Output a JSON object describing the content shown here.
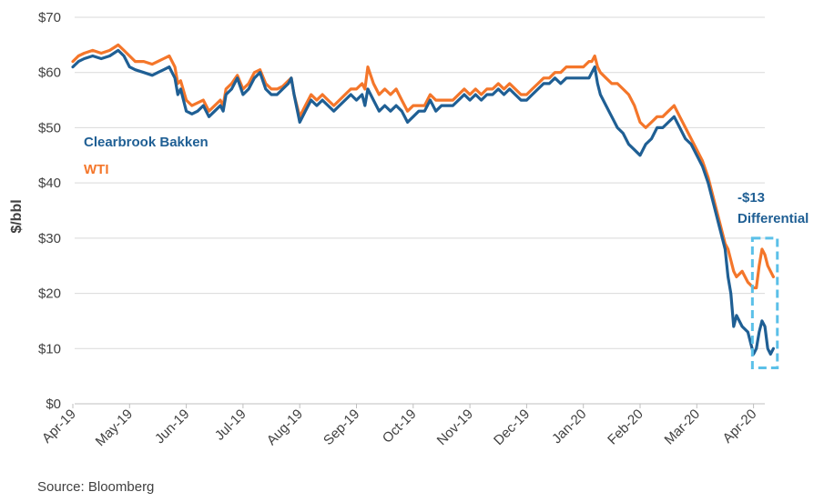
{
  "chart_data": {
    "type": "line",
    "ylabel": "$/bbl",
    "ylim": [
      0,
      70
    ],
    "y_ticks": [
      "$0",
      "$10",
      "$20",
      "$30",
      "$40",
      "$50",
      "$60",
      "$70"
    ],
    "y_tick_values": [
      0,
      10,
      20,
      30,
      40,
      50,
      60,
      70
    ],
    "x_ticks": [
      "Apr-19",
      "May-19",
      "Jun-19",
      "Jul-19",
      "Aug-19",
      "Sep-19",
      "Oct-19",
      "Nov-19",
      "Dec-19",
      "Jan-20",
      "Feb-20",
      "Mar-20",
      "Apr-20"
    ],
    "grid": "horizontal",
    "series": [
      {
        "name": "Clearbrook Bakken",
        "color": "#1f5f94",
        "points": [
          [
            0,
            61
          ],
          [
            0.1,
            62
          ],
          [
            0.2,
            62.5
          ],
          [
            0.35,
            63
          ],
          [
            0.5,
            62.5
          ],
          [
            0.65,
            63
          ],
          [
            0.8,
            64
          ],
          [
            0.9,
            63
          ],
          [
            1.0,
            61
          ],
          [
            1.1,
            60.5
          ],
          [
            1.25,
            60
          ],
          [
            1.4,
            59.5
          ],
          [
            1.5,
            60
          ],
          [
            1.6,
            60.5
          ],
          [
            1.7,
            61
          ],
          [
            1.8,
            59
          ],
          [
            1.85,
            56
          ],
          [
            1.9,
            57
          ],
          [
            2.0,
            53
          ],
          [
            2.1,
            52.5
          ],
          [
            2.2,
            53
          ],
          [
            2.3,
            54
          ],
          [
            2.4,
            52
          ],
          [
            2.5,
            53
          ],
          [
            2.6,
            54
          ],
          [
            2.65,
            53
          ],
          [
            2.7,
            56
          ],
          [
            2.8,
            57
          ],
          [
            2.9,
            59
          ],
          [
            3.0,
            56
          ],
          [
            3.1,
            57
          ],
          [
            3.2,
            59
          ],
          [
            3.3,
            60
          ],
          [
            3.4,
            57
          ],
          [
            3.5,
            56
          ],
          [
            3.6,
            56
          ],
          [
            3.7,
            57
          ],
          [
            3.8,
            58
          ],
          [
            3.85,
            59
          ],
          [
            3.9,
            56
          ],
          [
            4.0,
            51
          ],
          [
            4.1,
            53
          ],
          [
            4.2,
            55
          ],
          [
            4.3,
            54
          ],
          [
            4.4,
            55
          ],
          [
            4.5,
            54
          ],
          [
            4.6,
            53
          ],
          [
            4.7,
            54
          ],
          [
            4.8,
            55
          ],
          [
            4.9,
            56
          ],
          [
            5.0,
            55
          ],
          [
            5.1,
            56
          ],
          [
            5.15,
            54
          ],
          [
            5.2,
            57
          ],
          [
            5.3,
            55
          ],
          [
            5.4,
            53
          ],
          [
            5.5,
            54
          ],
          [
            5.6,
            53
          ],
          [
            5.7,
            54
          ],
          [
            5.8,
            53
          ],
          [
            5.9,
            51
          ],
          [
            6.0,
            52
          ],
          [
            6.1,
            53
          ],
          [
            6.2,
            53
          ],
          [
            6.3,
            55
          ],
          [
            6.4,
            53
          ],
          [
            6.5,
            54
          ],
          [
            6.6,
            54
          ],
          [
            6.7,
            54
          ],
          [
            6.8,
            55
          ],
          [
            6.9,
            56
          ],
          [
            7.0,
            55
          ],
          [
            7.1,
            56
          ],
          [
            7.2,
            55
          ],
          [
            7.3,
            56
          ],
          [
            7.4,
            56
          ],
          [
            7.5,
            57
          ],
          [
            7.6,
            56
          ],
          [
            7.7,
            57
          ],
          [
            7.8,
            56
          ],
          [
            7.9,
            55
          ],
          [
            8.0,
            55
          ],
          [
            8.1,
            56
          ],
          [
            8.2,
            57
          ],
          [
            8.3,
            58
          ],
          [
            8.4,
            58
          ],
          [
            8.5,
            59
          ],
          [
            8.6,
            58
          ],
          [
            8.7,
            59
          ],
          [
            8.8,
            59
          ],
          [
            8.9,
            59
          ],
          [
            9.0,
            59
          ],
          [
            9.1,
            59
          ],
          [
            9.15,
            60
          ],
          [
            9.2,
            61
          ],
          [
            9.25,
            58
          ],
          [
            9.3,
            56
          ],
          [
            9.4,
            54
          ],
          [
            9.5,
            52
          ],
          [
            9.6,
            50
          ],
          [
            9.7,
            49
          ],
          [
            9.8,
            47
          ],
          [
            9.9,
            46
          ],
          [
            10.0,
            45
          ],
          [
            10.1,
            47
          ],
          [
            10.2,
            48
          ],
          [
            10.3,
            50
          ],
          [
            10.4,
            50
          ],
          [
            10.5,
            51
          ],
          [
            10.6,
            52
          ],
          [
            10.7,
            50
          ],
          [
            10.8,
            48
          ],
          [
            10.9,
            47
          ],
          [
            11.0,
            45
          ],
          [
            11.1,
            43
          ],
          [
            11.2,
            40
          ],
          [
            11.3,
            36
          ],
          [
            11.4,
            32
          ],
          [
            11.5,
            28
          ],
          [
            11.55,
            23
          ],
          [
            11.6,
            20
          ],
          [
            11.65,
            14
          ],
          [
            11.7,
            16
          ],
          [
            11.8,
            14
          ],
          [
            11.9,
            13
          ],
          [
            12.0,
            9
          ],
          [
            12.05,
            10
          ],
          [
            12.1,
            13
          ],
          [
            12.15,
            15
          ],
          [
            12.2,
            14
          ],
          [
            12.25,
            10
          ],
          [
            12.3,
            9
          ],
          [
            12.35,
            10
          ]
        ]
      },
      {
        "name": "WTI",
        "color": "#f4762a",
        "points": [
          [
            0,
            62
          ],
          [
            0.1,
            63
          ],
          [
            0.2,
            63.5
          ],
          [
            0.35,
            64
          ],
          [
            0.5,
            63.5
          ],
          [
            0.65,
            64
          ],
          [
            0.8,
            65
          ],
          [
            0.9,
            64
          ],
          [
            1.0,
            63
          ],
          [
            1.1,
            62
          ],
          [
            1.25,
            62
          ],
          [
            1.4,
            61.5
          ],
          [
            1.5,
            62
          ],
          [
            1.6,
            62.5
          ],
          [
            1.7,
            63
          ],
          [
            1.8,
            61
          ],
          [
            1.85,
            58
          ],
          [
            1.9,
            58.5
          ],
          [
            2.0,
            55
          ],
          [
            2.1,
            54
          ],
          [
            2.2,
            54.5
          ],
          [
            2.3,
            55
          ],
          [
            2.4,
            53
          ],
          [
            2.5,
            54
          ],
          [
            2.6,
            55
          ],
          [
            2.65,
            54
          ],
          [
            2.7,
            57
          ],
          [
            2.8,
            58
          ],
          [
            2.9,
            59.5
          ],
          [
            3.0,
            57
          ],
          [
            3.1,
            58
          ],
          [
            3.2,
            60
          ],
          [
            3.3,
            60.5
          ],
          [
            3.4,
            58
          ],
          [
            3.5,
            57
          ],
          [
            3.6,
            57
          ],
          [
            3.7,
            57.5
          ],
          [
            3.8,
            58.5
          ],
          [
            3.85,
            59
          ],
          [
            3.9,
            56
          ],
          [
            4.0,
            52
          ],
          [
            4.1,
            54
          ],
          [
            4.2,
            56
          ],
          [
            4.3,
            55
          ],
          [
            4.4,
            56
          ],
          [
            4.5,
            55
          ],
          [
            4.6,
            54
          ],
          [
            4.7,
            55
          ],
          [
            4.8,
            56
          ],
          [
            4.9,
            57
          ],
          [
            5.0,
            57
          ],
          [
            5.1,
            58
          ],
          [
            5.15,
            57
          ],
          [
            5.2,
            61
          ],
          [
            5.3,
            58
          ],
          [
            5.4,
            56
          ],
          [
            5.5,
            57
          ],
          [
            5.6,
            56
          ],
          [
            5.7,
            57
          ],
          [
            5.8,
            55
          ],
          [
            5.9,
            53
          ],
          [
            6.0,
            54
          ],
          [
            6.1,
            54
          ],
          [
            6.2,
            54
          ],
          [
            6.3,
            56
          ],
          [
            6.4,
            55
          ],
          [
            6.5,
            55
          ],
          [
            6.6,
            55
          ],
          [
            6.7,
            55
          ],
          [
            6.8,
            56
          ],
          [
            6.9,
            57
          ],
          [
            7.0,
            56
          ],
          [
            7.1,
            57
          ],
          [
            7.2,
            56
          ],
          [
            7.3,
            57
          ],
          [
            7.4,
            57
          ],
          [
            7.5,
            58
          ],
          [
            7.6,
            57
          ],
          [
            7.7,
            58
          ],
          [
            7.8,
            57
          ],
          [
            7.9,
            56
          ],
          [
            8.0,
            56
          ],
          [
            8.1,
            57
          ],
          [
            8.2,
            58
          ],
          [
            8.3,
            59
          ],
          [
            8.4,
            59
          ],
          [
            8.5,
            60
          ],
          [
            8.6,
            60
          ],
          [
            8.7,
            61
          ],
          [
            8.8,
            61
          ],
          [
            8.9,
            61
          ],
          [
            9.0,
            61
          ],
          [
            9.1,
            62
          ],
          [
            9.15,
            62
          ],
          [
            9.2,
            63
          ],
          [
            9.25,
            61
          ],
          [
            9.3,
            60
          ],
          [
            9.4,
            59
          ],
          [
            9.5,
            58
          ],
          [
            9.6,
            58
          ],
          [
            9.7,
            57
          ],
          [
            9.8,
            56
          ],
          [
            9.9,
            54
          ],
          [
            10.0,
            51
          ],
          [
            10.1,
            50
          ],
          [
            10.2,
            51
          ],
          [
            10.3,
            52
          ],
          [
            10.4,
            52
          ],
          [
            10.5,
            53
          ],
          [
            10.6,
            54
          ],
          [
            10.7,
            52
          ],
          [
            10.8,
            50
          ],
          [
            10.9,
            48
          ],
          [
            11.0,
            46
          ],
          [
            11.1,
            44
          ],
          [
            11.2,
            41
          ],
          [
            11.3,
            37
          ],
          [
            11.4,
            33
          ],
          [
            11.5,
            29
          ],
          [
            11.55,
            28
          ],
          [
            11.6,
            26
          ],
          [
            11.65,
            24
          ],
          [
            11.7,
            23
          ],
          [
            11.8,
            24
          ],
          [
            11.9,
            22
          ],
          [
            12.0,
            21
          ],
          [
            12.05,
            21
          ],
          [
            12.1,
            25
          ],
          [
            12.15,
            28
          ],
          [
            12.2,
            27
          ],
          [
            12.25,
            25
          ],
          [
            12.3,
            24
          ],
          [
            12.35,
            23
          ]
        ]
      }
    ],
    "legend": [
      {
        "label": "Clearbrook Bakken",
        "color": "#1f5f94"
      },
      {
        "label": "WTI",
        "color": "#f4762a"
      }
    ],
    "annotation": {
      "line1": "-$13",
      "line2": "Differential",
      "color": "#1f5f94",
      "box_color": "#5bc0e8",
      "x_range": [
        11.98,
        12.42
      ],
      "y_range": [
        6.5,
        30
      ]
    },
    "source": "Source: Bloomberg"
  }
}
